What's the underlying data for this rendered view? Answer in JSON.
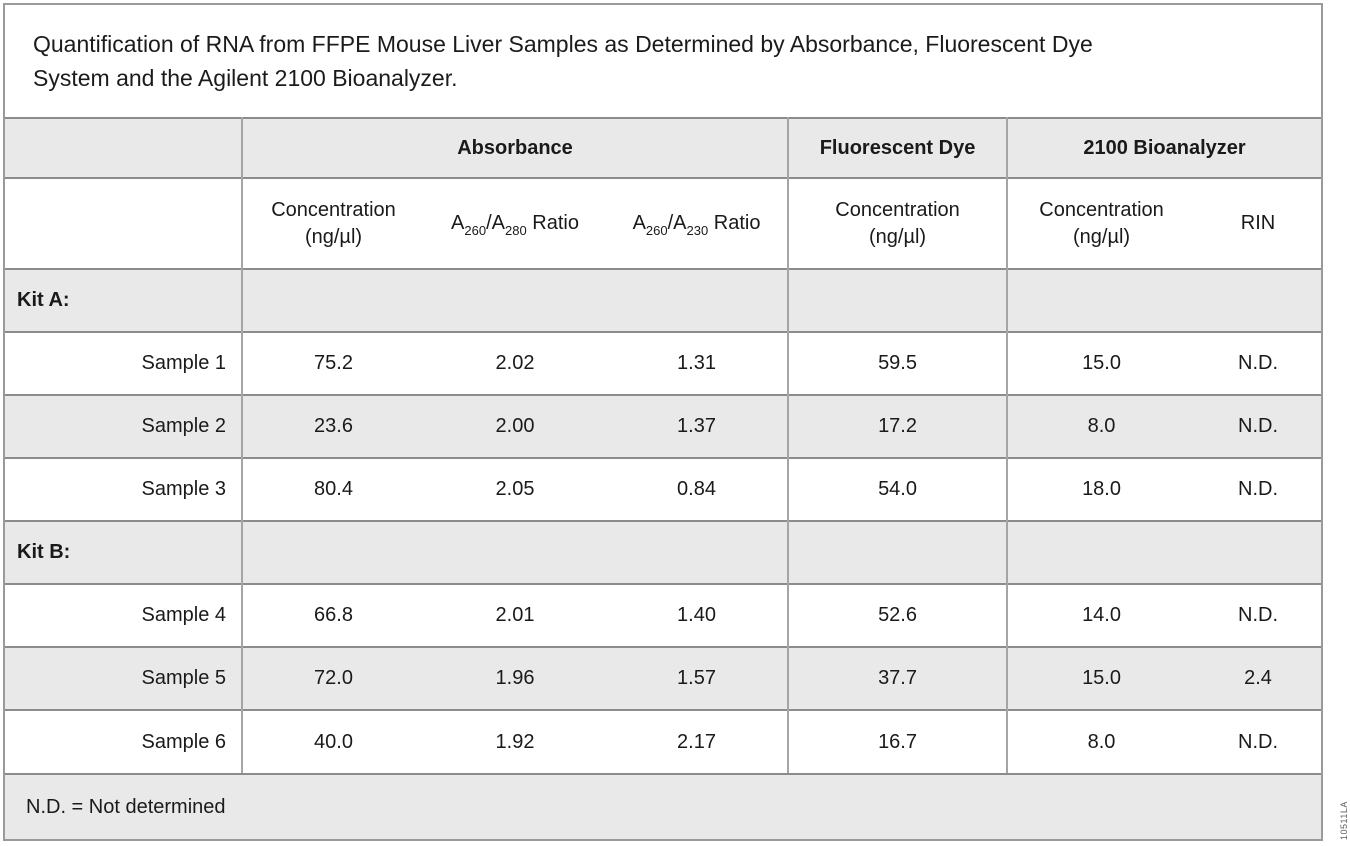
{
  "figure": {
    "title_lines": [
      "Quantification of RNA from FFPE Mouse Liver Samples as Determined by Absorbance, Fluorescent Dye",
      "System and the Agilent 2100 Bioanalyzer."
    ],
    "footnote": "N.D. = Not determined",
    "side_label": "10511LA"
  },
  "colors": {
    "row_shade": "#e9e9e9",
    "grid_horizontal": "#8c8c8c",
    "grid_vertical": "#a5a5a5",
    "text": "#1a1a1a"
  },
  "table": {
    "group_headers": [
      {
        "label": "Absorbance"
      },
      {
        "label": "Fluorescent Dye"
      },
      {
        "label": "2100 Bioanalyzer"
      }
    ],
    "column_headers": [
      {
        "line1": "Concentration",
        "line2": "(ng/µl)"
      },
      {
        "pre": "A",
        "sub1": "260",
        "mid": "/A",
        "sub2": "280",
        "post": " Ratio"
      },
      {
        "pre": "A",
        "sub1": "260",
        "mid": "/A",
        "sub2": "230",
        "post": " Ratio"
      },
      {
        "line1": "Concentration",
        "line2": "(ng/µl)"
      },
      {
        "line1": "Concentration",
        "line2": "(ng/µl)"
      },
      {
        "line1": "RIN"
      }
    ],
    "rows": [
      {
        "type": "section",
        "label": "Kit A:",
        "values": [
          "",
          "",
          "",
          "",
          "",
          ""
        ]
      },
      {
        "type": "sample",
        "label": "Sample 1",
        "values": [
          "75.2",
          "2.02",
          "1.31",
          "59.5",
          "15.0",
          "N.D."
        ]
      },
      {
        "type": "sample",
        "label": "Sample 2",
        "values": [
          "23.6",
          "2.00",
          "1.37",
          "17.2",
          "8.0",
          "N.D."
        ]
      },
      {
        "type": "sample",
        "label": "Sample 3",
        "values": [
          "80.4",
          "2.05",
          "0.84",
          "54.0",
          "18.0",
          "N.D."
        ]
      },
      {
        "type": "section",
        "label": "Kit B:",
        "values": [
          "",
          "",
          "",
          "",
          "",
          ""
        ]
      },
      {
        "type": "sample",
        "label": "Sample 4",
        "values": [
          "66.8",
          "2.01",
          "1.40",
          "52.6",
          "14.0",
          "N.D."
        ]
      },
      {
        "type": "sample",
        "label": "Sample 5",
        "values": [
          "72.0",
          "1.96",
          "1.57",
          "37.7",
          "15.0",
          "2.4"
        ]
      },
      {
        "type": "sample",
        "label": "Sample 6",
        "values": [
          "40.0",
          "1.92",
          "2.17",
          "16.7",
          "8.0",
          "N.D."
        ]
      }
    ]
  }
}
